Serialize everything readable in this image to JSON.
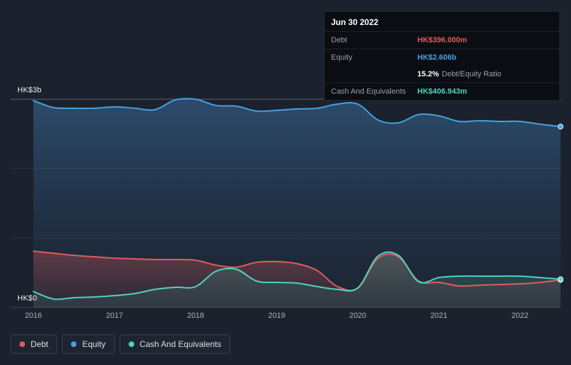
{
  "colors": {
    "debt": "#e25c5c",
    "equity": "#46a2e2",
    "cash": "#4fd4c2",
    "background": "#1b222d"
  },
  "tooltip": {
    "title": "Jun 30 2022",
    "debt_label": "Debt",
    "debt_value": "HK$396.000m",
    "equity_label": "Equity",
    "equity_value": "HK$2.606b",
    "ratio_value": "15.2%",
    "ratio_label": "Debt/Equity Ratio",
    "cash_label": "Cash And Equivalents",
    "cash_value": "HK$406.943m"
  },
  "legend": {
    "debt": "Debt",
    "equity": "Equity",
    "cash": "Cash And Equivalents"
  },
  "chart_data": {
    "type": "area",
    "title": "",
    "unit": "HK$ billions",
    "x_range": [
      2016,
      2022.5
    ],
    "x_ticks": [
      2016,
      2017,
      2018,
      2019,
      2020,
      2021,
      2022
    ],
    "y_axis": {
      "min": 0,
      "max": 3,
      "top_label": "HK$3b",
      "bottom_label": "HK$0",
      "gridlines": [
        0,
        1,
        2,
        3
      ]
    },
    "grid": "horizontal",
    "legend_position": "bottom-left",
    "x": [
      2016,
      2016.25,
      2016.5,
      2016.75,
      2017,
      2017.25,
      2017.5,
      2017.75,
      2018,
      2018.25,
      2018.5,
      2018.75,
      2019,
      2019.25,
      2019.5,
      2019.75,
      2020,
      2020.25,
      2020.5,
      2020.75,
      2021,
      2021.25,
      2021.5,
      2021.75,
      2022,
      2022.25,
      2022.5
    ],
    "series": [
      {
        "name": "Equity",
        "key": "equity",
        "color": "#46a2e2",
        "values": [
          2.98,
          2.88,
          2.87,
          2.87,
          2.89,
          2.87,
          2.85,
          2.99,
          3.0,
          2.91,
          2.9,
          2.83,
          2.84,
          2.86,
          2.87,
          2.93,
          2.93,
          2.7,
          2.66,
          2.78,
          2.76,
          2.68,
          2.69,
          2.68,
          2.68,
          2.64,
          2.606
        ]
      },
      {
        "name": "Debt",
        "key": "debt",
        "color": "#e25c5c",
        "values": [
          0.81,
          0.78,
          0.75,
          0.73,
          0.71,
          0.7,
          0.69,
          0.69,
          0.68,
          0.61,
          0.58,
          0.65,
          0.66,
          0.63,
          0.53,
          0.3,
          0.28,
          0.71,
          0.73,
          0.38,
          0.36,
          0.31,
          0.32,
          0.33,
          0.34,
          0.36,
          0.396
        ]
      },
      {
        "name": "Cash And Equivalents",
        "key": "cash",
        "color": "#4fd4c2",
        "values": [
          0.23,
          0.12,
          0.14,
          0.15,
          0.17,
          0.2,
          0.26,
          0.29,
          0.3,
          0.52,
          0.55,
          0.38,
          0.36,
          0.35,
          0.3,
          0.26,
          0.28,
          0.74,
          0.75,
          0.37,
          0.43,
          0.45,
          0.45,
          0.45,
          0.45,
          0.43,
          0.407
        ]
      }
    ]
  }
}
